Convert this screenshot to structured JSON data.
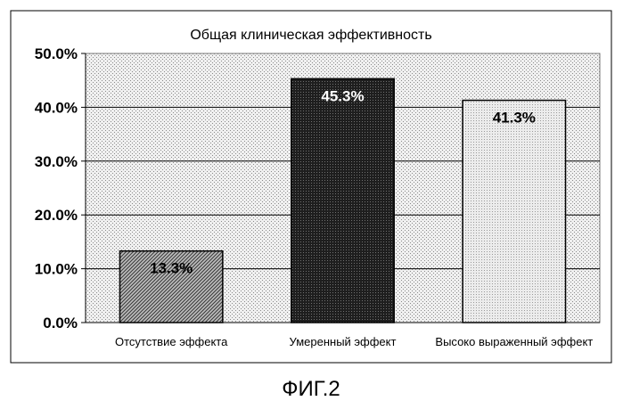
{
  "chart_data": {
    "type": "bar",
    "title": "Общая клиническая эффективность",
    "categories": [
      "Отсутствие эффекта",
      "Умеренный эффект",
      "Высоко выраженный эффект"
    ],
    "values": [
      13.3,
      45.3,
      41.3
    ],
    "value_labels": [
      "13.3%",
      "45.3%",
      "41.3%"
    ],
    "y_ticks": [
      "0.0%",
      "10.0%",
      "20.0%",
      "30.0%",
      "40.0%",
      "50.0%"
    ],
    "ylim": [
      0,
      50
    ],
    "grid": true,
    "legend": "none",
    "bar_styles": [
      "diagonal-hatch",
      "dark-dense",
      "light-dots"
    ]
  },
  "caption": "ФИГ.2"
}
